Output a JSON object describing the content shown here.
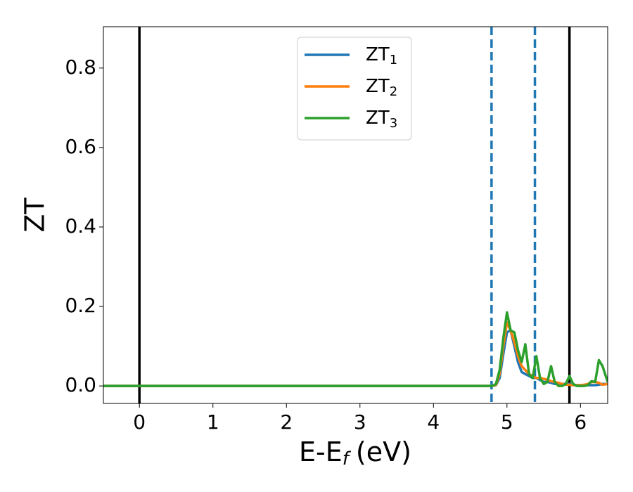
{
  "chart_data": {
    "type": "line",
    "xlabel": {
      "main": "E-E",
      "sub": "f",
      "unit": "(eV)"
    },
    "ylabel": "ZT",
    "xlim": [
      -0.49,
      6.37
    ],
    "ylim": [
      -0.044,
      0.904
    ],
    "xticks": [
      0,
      1,
      2,
      3,
      4,
      5,
      6
    ],
    "yticks": [
      0.0,
      0.2,
      0.4,
      0.6,
      0.8
    ],
    "ytick_labels": [
      "0.0",
      "0.2",
      "0.4",
      "0.6",
      "0.8"
    ],
    "legend": "upper center",
    "vlines": [
      {
        "x": 0,
        "color": "#000000",
        "style": "solid"
      },
      {
        "x": 5.85,
        "color": "#000000",
        "style": "solid"
      },
      {
        "x": 4.79,
        "color": "#1f77b4",
        "style": "dashed"
      },
      {
        "x": 5.38,
        "color": "#1f77b4",
        "style": "dashed"
      }
    ],
    "x": [
      -0.49,
      4.7,
      4.8,
      4.85,
      4.9,
      4.95,
      5.0,
      5.05,
      5.1,
      5.15,
      5.2,
      5.25,
      5.3,
      5.35,
      5.4,
      5.45,
      5.5,
      5.55,
      5.6,
      5.65,
      5.7,
      5.75,
      5.8,
      5.85,
      5.9,
      5.95,
      6.0,
      6.05,
      6.1,
      6.15,
      6.2,
      6.25,
      6.3,
      6.37
    ],
    "series": [
      {
        "name": "ZT",
        "subscript": "1",
        "color": "#1f77b4",
        "values": [
          0,
          0,
          0,
          0.002,
          0.02,
          0.08,
          0.135,
          0.14,
          0.1,
          0.06,
          0.035,
          0.03,
          0.025,
          0.02,
          0.02,
          0.015,
          0.01,
          0.01,
          0.008,
          0.005,
          0.005,
          0.005,
          0.005,
          0.005,
          0.003,
          0.002,
          0.002,
          0.002,
          0.002,
          0.002,
          0.002,
          0.003,
          0.005,
          0.005
        ]
      },
      {
        "name": "ZT",
        "subscript": "2",
        "color": "#ff7f0e",
        "values": [
          0,
          0,
          0,
          0.003,
          0.03,
          0.1,
          0.16,
          0.14,
          0.11,
          0.075,
          0.05,
          0.04,
          0.03,
          0.025,
          0.02,
          0.02,
          0.018,
          0.015,
          0.012,
          0.01,
          0.008,
          0.005,
          0.003,
          0.003,
          0.002,
          0.002,
          0.002,
          0.003,
          0.005,
          0.01,
          0.01,
          0.008,
          0.003,
          0.005
        ]
      },
      {
        "name": "ZT",
        "subscript": "3",
        "color": "#2ca02c",
        "values": [
          0,
          0,
          0,
          0.005,
          0.04,
          0.12,
          0.185,
          0.14,
          0.135,
          0.09,
          0.06,
          0.105,
          0.03,
          0.02,
          0.075,
          0.02,
          0.005,
          0.01,
          0.05,
          0.01,
          0.0,
          0.0,
          0.005,
          0.025,
          0.005,
          0.0,
          0.0,
          0.0,
          0.002,
          0.012,
          0.01,
          0.065,
          0.05,
          0.01
        ]
      }
    ]
  }
}
